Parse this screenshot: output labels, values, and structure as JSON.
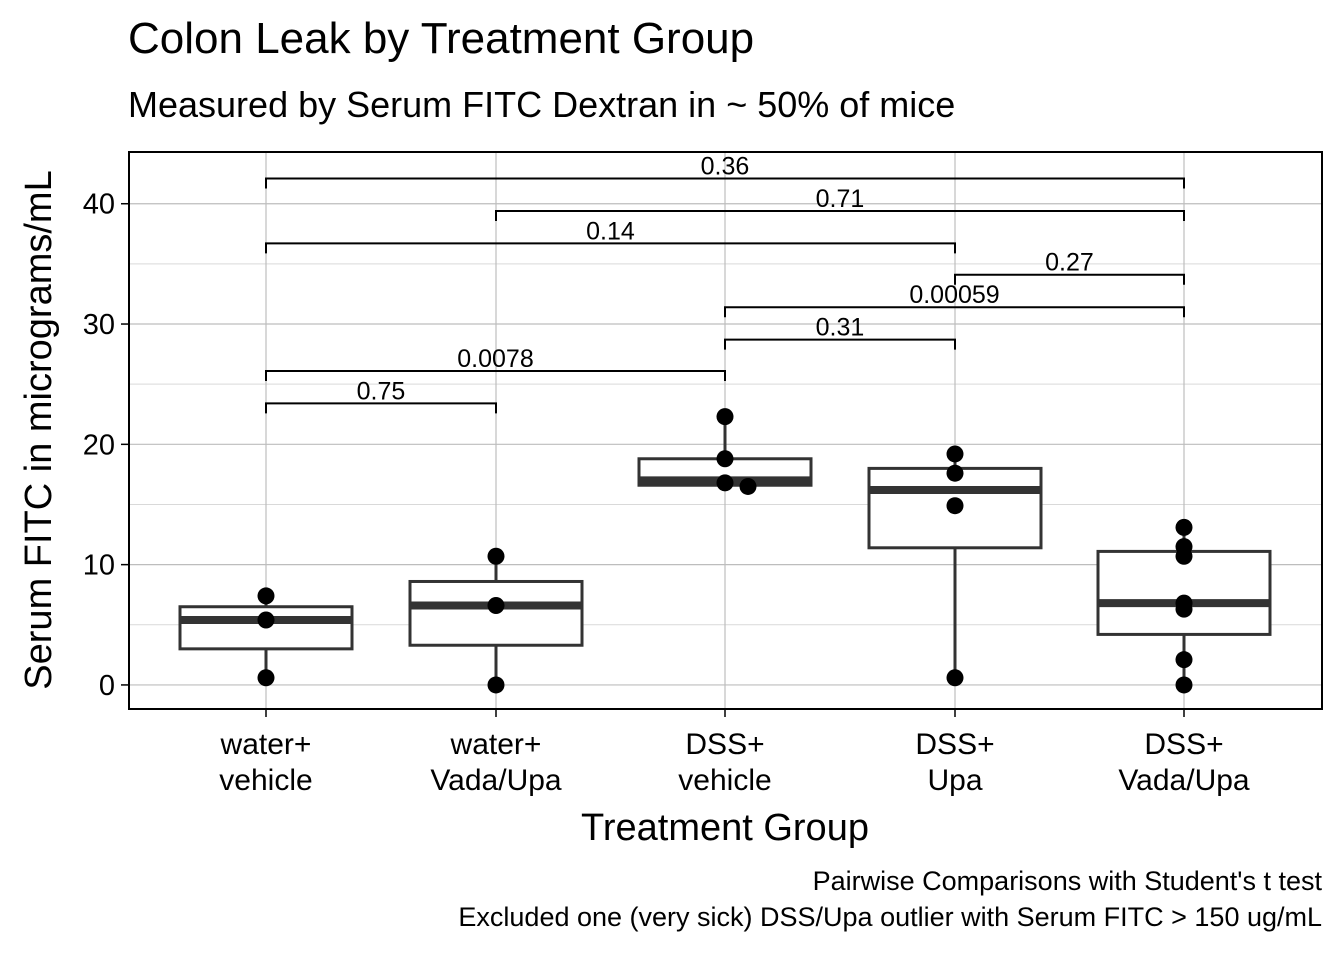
{
  "chart_data": {
    "type": "box",
    "title": "Colon Leak by Treatment Group",
    "subtitle": "Measured by Serum FITC Dextran in ~ 50% of mice",
    "xlabel": "Treatment Group",
    "ylabel": "Serum FITC in micrograms/mL",
    "ylim": [
      -2,
      44.3
    ],
    "yticks": [
      0,
      10,
      20,
      30,
      40
    ],
    "grid": true,
    "categories": [
      [
        "water+",
        "vehicle"
      ],
      [
        "water+",
        "Vada/Upa"
      ],
      [
        "DSS+",
        "vehicle"
      ],
      [
        "DSS+",
        "Upa"
      ],
      [
        "DSS+",
        "Vada/Upa"
      ]
    ],
    "boxes": [
      {
        "whisker_low": 0.6,
        "q1": 3.0,
        "median": 5.4,
        "q3": 6.5,
        "whisker_high": 7.4
      },
      {
        "whisker_low": 0.0,
        "q1": 3.3,
        "median": 6.6,
        "q3": 8.6,
        "whisker_high": 10.7
      },
      {
        "whisker_low": 16.5,
        "q1": 16.6,
        "median": 17.0,
        "q3": 18.8,
        "whisker_high": 22.3
      },
      {
        "whisker_low": 0.6,
        "q1": 11.4,
        "median": 16.2,
        "q3": 18.0,
        "whisker_high": 19.2
      },
      {
        "whisker_low": 0.0,
        "q1": 4.2,
        "median": 6.8,
        "q3": 11.1,
        "whisker_high": 13.1
      }
    ],
    "points": [
      {
        "group": 0,
        "y": 7.4
      },
      {
        "group": 0,
        "y": 5.4
      },
      {
        "group": 0,
        "y": 0.6
      },
      {
        "group": 1,
        "y": 10.7
      },
      {
        "group": 1,
        "y": 6.6
      },
      {
        "group": 1,
        "y": 0.0
      },
      {
        "group": 2,
        "y": 22.3
      },
      {
        "group": 2,
        "y": 18.8
      },
      {
        "group": 2,
        "y": 16.8
      },
      {
        "group": 2,
        "y": 16.5,
        "dx": 0.1
      },
      {
        "group": 3,
        "y": 19.2
      },
      {
        "group": 3,
        "y": 17.6
      },
      {
        "group": 3,
        "y": 14.9
      },
      {
        "group": 3,
        "y": 0.6
      },
      {
        "group": 4,
        "y": 13.1
      },
      {
        "group": 4,
        "y": 11.5
      },
      {
        "group": 4,
        "y": 10.7
      },
      {
        "group": 4,
        "y": 6.8
      },
      {
        "group": 4,
        "y": 6.3
      },
      {
        "group": 4,
        "y": 2.1
      },
      {
        "group": 4,
        "y": 0.0
      }
    ],
    "comparisons": [
      {
        "from": 0,
        "to": 4,
        "y": 42.1,
        "label": "0.36"
      },
      {
        "from": 1,
        "to": 4,
        "y": 39.4,
        "label": "0.71"
      },
      {
        "from": 0,
        "to": 3,
        "y": 36.7,
        "label": "0.14"
      },
      {
        "from": 3,
        "to": 4,
        "y": 34.1,
        "label": "0.27"
      },
      {
        "from": 2,
        "to": 4,
        "y": 31.4,
        "label": "0.00059"
      },
      {
        "from": 2,
        "to": 3,
        "y": 28.7,
        "label": "0.31"
      },
      {
        "from": 0,
        "to": 2,
        "y": 26.1,
        "label": "0.0078"
      },
      {
        "from": 0,
        "to": 1,
        "y": 23.4,
        "label": "0.75"
      }
    ],
    "caption": [
      "Pairwise Comparisons with Student's t test",
      "Excluded one (very sick) DSS/Upa outlier with Serum FITC > 150 ug/mL"
    ]
  }
}
